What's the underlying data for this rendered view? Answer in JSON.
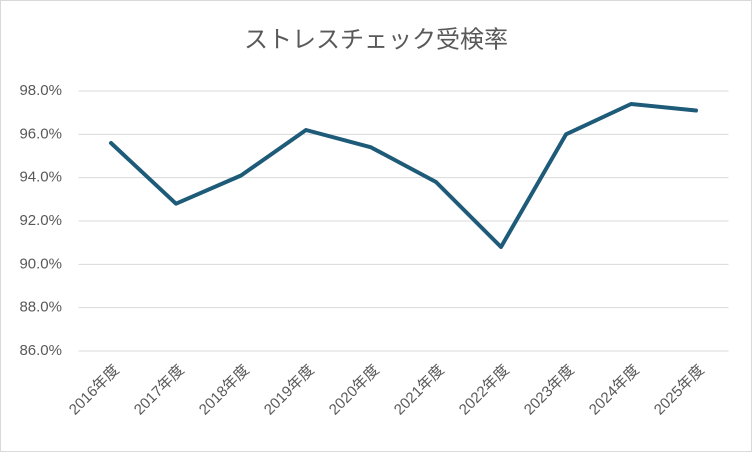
{
  "chart_data": {
    "type": "line",
    "title": "ストレスチェック受検率",
    "categories": [
      "2016年度",
      "2017年度",
      "2018年度",
      "2019年度",
      "2020年度",
      "2021年度",
      "2022年度",
      "2023年度",
      "2024年度",
      "2025年度"
    ],
    "series": [
      {
        "name": "受検率",
        "color": "#1d5b79",
        "values": [
          95.6,
          92.8,
          94.1,
          96.2,
          95.4,
          93.8,
          90.8,
          96.0,
          97.4,
          97.1
        ]
      }
    ],
    "ylim": [
      86,
      98
    ],
    "yticks": [
      {
        "value": 86,
        "label": "86.0%"
      },
      {
        "value": 88,
        "label": "88.0%"
      },
      {
        "value": 90,
        "label": "90.0%"
      },
      {
        "value": 92,
        "label": "92.0%"
      },
      {
        "value": 94,
        "label": "94.0%"
      },
      {
        "value": 96,
        "label": "96.0%"
      },
      {
        "value": 98,
        "label": "98.0%"
      }
    ],
    "grid": true
  }
}
